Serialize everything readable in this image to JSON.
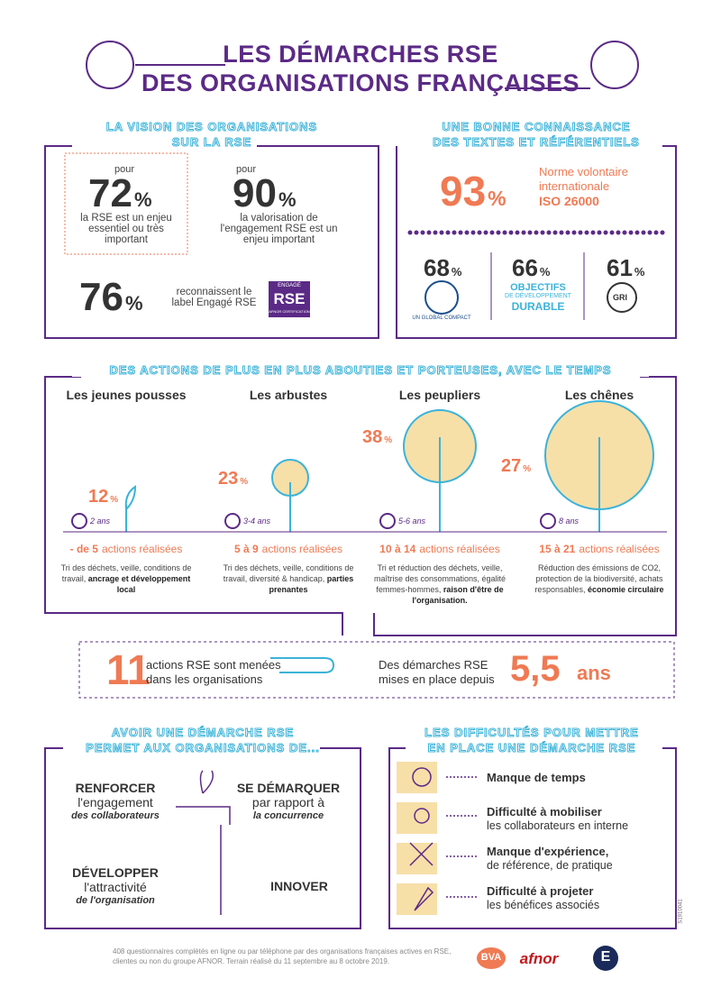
{
  "header": {
    "title_line1": "LES DÉMARCHES RSE",
    "title_line2": "DES ORGANISATIONS FRANÇAISES"
  },
  "vision": {
    "title": [
      "LA VISION DES ORGANISATIONS",
      "SUR LA RSE"
    ],
    "stats": [
      {
        "prefix": "pour",
        "value": 72,
        "unit": "%",
        "text": "la RSE est un enjeu essentiel ou très important"
      },
      {
        "prefix": "pour",
        "value": 90,
        "unit": "%",
        "text": "la valorisation de l'engagement RSE est un enjeu important"
      },
      {
        "value": 76,
        "unit": "%",
        "text": "reconnaissent le label Engagé RSE"
      }
    ],
    "badge": [
      "ENGAGÉ",
      "RSE",
      "AFNOR CERTIFICATION"
    ]
  },
  "knowledge": {
    "title": [
      "UNE BONNE CONNAISSANCE",
      "DES TEXTES ET RÉFÉRENTIELS"
    ],
    "main": {
      "value": 93,
      "unit": "%",
      "text": [
        "Norme volontaire",
        "internationale",
        "ISO 26000"
      ]
    },
    "items": [
      {
        "value": 68,
        "unit": "%",
        "logo": [
          "UN GLOBAL COMPACT"
        ]
      },
      {
        "value": 66,
        "unit": "%",
        "logo": [
          "OBJECTIFS",
          "DE DÉVELOPPEMENT",
          "DURABLE"
        ]
      },
      {
        "value": 61,
        "unit": "%",
        "logo": [
          "GRI"
        ]
      }
    ]
  },
  "actions": {
    "title": "DES ACTIONS DE PLUS EN PLUS ABOUTIES ET PORTEUSES, AVEC LE TEMPS",
    "stages": [
      {
        "name": "Les jeunes pousses",
        "value": 12,
        "unit": "%",
        "duration": "2 ans",
        "count": "- de 5",
        "count_label": "actions réalisées",
        "desc": "Tri des déchets, veille, conditions de travail,",
        "desc_bold": "ancrage et développement local"
      },
      {
        "name": "Les arbustes",
        "value": 23,
        "unit": "%",
        "duration": "3-4 ans",
        "count": "5 à 9",
        "count_label": "actions réalisées",
        "desc": "Tri des déchets, veille, conditions de travail, diversité & handicap,",
        "desc_bold": "parties prenantes"
      },
      {
        "name": "Les peupliers",
        "value": 38,
        "unit": "%",
        "duration": "5-6 ans",
        "count": "10 à 14",
        "count_label": "actions réalisées",
        "desc": "Tri et réduction des déchets, veille, maîtrise des consommations, égalité femmes-hommes,",
        "desc_bold": "raison d'être de l'organisation."
      },
      {
        "name": "Les chênes",
        "value": 27,
        "unit": "%",
        "duration": "8 ans",
        "count": "15 à 21",
        "count_label": "actions réalisées",
        "desc": "Réduction des émissions de CO2, protection de la biodiversité, achats responsables,",
        "desc_bold": "économie circulaire"
      }
    ]
  },
  "summary": {
    "actions_value": 11,
    "actions_text": [
      "actions RSE sont menées",
      "dans les organisations"
    ],
    "years_text": [
      "Des démarches RSE",
      "mises en place depuis"
    ],
    "years_value": "5,5",
    "years_unit": "ans"
  },
  "benefits": {
    "title": [
      "AVOIR UNE DÉMARCHE RSE",
      "PERMET AUX ORGANISATIONS DE..."
    ],
    "items": [
      {
        "head": "RENFORCER",
        "line": "l'engagement",
        "italic": "des collaborateurs"
      },
      {
        "head": "SE DÉMARQUER",
        "line": "par rapport à",
        "italic": "la concurrence"
      },
      {
        "head": "DÉVELOPPER",
        "line": "l'attractivité",
        "italic": "de l'organisation"
      },
      {
        "head": "INNOVER"
      }
    ]
  },
  "difficulties": {
    "title": [
      "LES DIFFICULTÉS POUR METTRE",
      "EN PLACE UNE DÉMARCHE RSE"
    ],
    "items": [
      {
        "bold": "Manque de temps"
      },
      {
        "bold": "Difficulté à mobiliser",
        "text": "les collaborateurs en interne"
      },
      {
        "bold": "Manque d'expérience,",
        "text": "de référence, de pratique"
      },
      {
        "bold": "Difficulté à projeter",
        "text": "les bénéfices associés"
      }
    ]
  },
  "footer": {
    "note": "408 questionnaires complétés en ligne ou par téléphone par des organisations françaises actives en RSE, clientes ou non du groupe AFNOR. Terrain réalisé du 11 septembre au 8 octobre 2019.",
    "logos": [
      "BVA",
      "afnor",
      "E"
    ],
    "code": "S1910041"
  }
}
